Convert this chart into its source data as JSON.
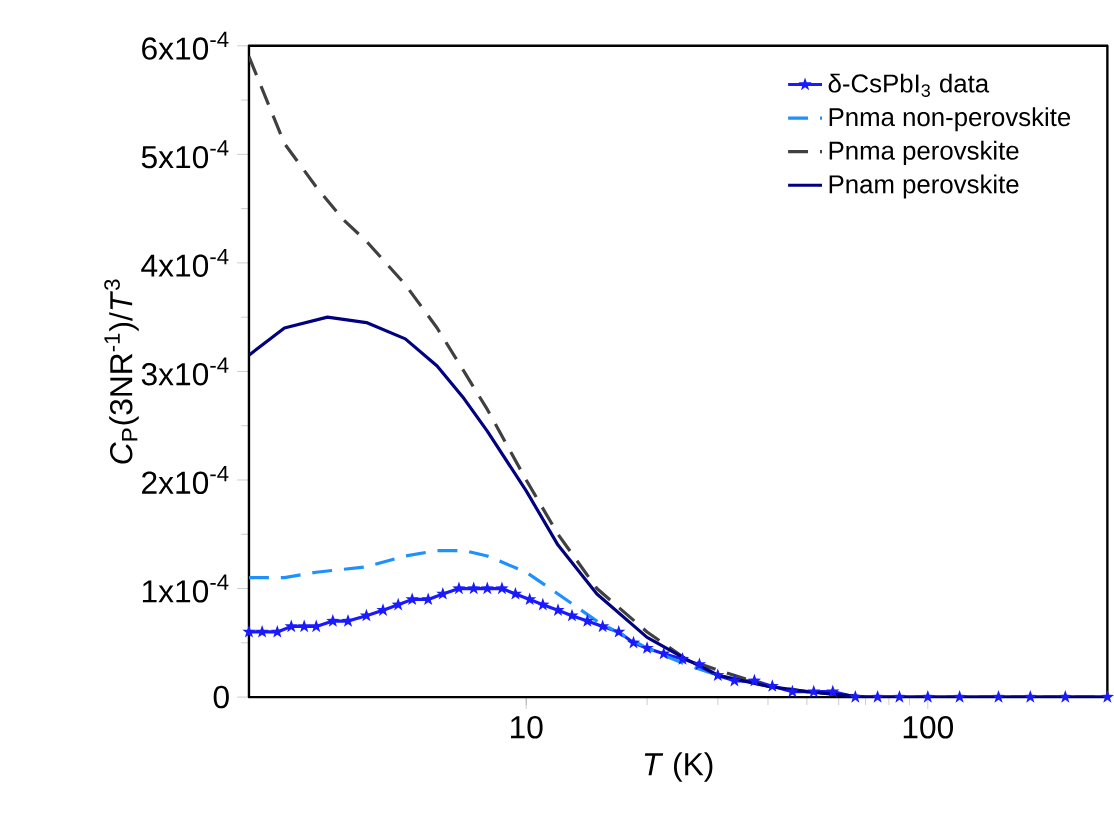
{
  "chart_data": {
    "type": "line",
    "xlabel": "*T* (K)",
    "ylabel": "*C*$_{P}$(3NR$^{-1}$)/*T*$^{3}$",
    "log": "x",
    "xlim": [
      2.04,
      280
    ],
    "xticks": [
      10,
      100
    ],
    "ylim": [
      0,
      0.0006
    ],
    "yticks": [
      0,
      {
        "value": 0.0001,
        "label": "1x10$^{-4}$"
      },
      {
        "value": 0.0002,
        "label": "2x10$^{-4}$"
      },
      {
        "value": 0.0003,
        "label": "3x10$^{-4}$"
      },
      {
        "value": 0.0004,
        "label": "4x10$^{-4}$"
      },
      {
        "value": 0.0005,
        "label": "5x10$^{-4}$"
      },
      {
        "value": 0.0006,
        "label": "6x10$^{-4}$"
      }
    ],
    "legend": "top right",
    "series": [
      {
        "name": "δ-CsPbI$_{3}$ data",
        "color": "#1a1aff",
        "marker": "star",
        "line_style": "solid",
        "x": [
          2.04,
          2.2,
          2.4,
          2.6,
          2.8,
          3.0,
          3.3,
          3.6,
          4.0,
          4.4,
          4.8,
          5.2,
          5.7,
          6.2,
          6.8,
          7.4,
          8.0,
          8.7,
          9.4,
          10.2,
          11,
          12,
          13,
          14.2,
          15.5,
          17,
          18.5,
          20,
          22,
          24.5,
          27,
          30,
          33,
          37,
          41,
          46,
          52,
          58,
          66,
          75,
          85,
          100,
          120,
          150,
          180,
          220,
          280
        ],
        "values": [
          6e-05,
          6e-05,
          6e-05,
          6.5e-05,
          6.5e-05,
          6.5e-05,
          7e-05,
          7e-05,
          7.5e-05,
          8e-05,
          8.5e-05,
          9e-05,
          9e-05,
          9.5e-05,
          0.0001,
          0.0001,
          0.0001,
          0.0001,
          9.5e-05,
          9e-05,
          8.5e-05,
          8e-05,
          7.5e-05,
          7e-05,
          6.5e-05,
          6e-05,
          5e-05,
          4.5e-05,
          4e-05,
          3.5e-05,
          3e-05,
          2e-05,
          1.5e-05,
          1.5e-05,
          1e-05,
          5e-06,
          5e-06,
          5e-06,
          0,
          0,
          0,
          0,
          0,
          0,
          0,
          0,
          0
        ]
      },
      {
        "name": "Pnma non-perovskite",
        "color": "#1e90ff",
        "line_style": "dashed",
        "x": [
          2.04,
          2.5,
          3,
          4,
          5,
          6,
          7,
          8,
          10,
          12,
          15,
          20,
          25,
          30,
          40
        ],
        "values": [
          0.00011,
          0.00011,
          0.000115,
          0.00012,
          0.00013,
          0.000135,
          0.000135,
          0.00013,
          0.000115,
          9.5e-05,
          7e-05,
          4.5e-05,
          3e-05,
          2e-05,
          1e-05
        ]
      },
      {
        "name": "Pnma perovskite",
        "color": "#404040",
        "line_style": "dashed",
        "x": [
          2.04,
          2.5,
          3,
          3.5,
          4,
          5,
          6,
          7,
          8,
          10,
          12,
          15,
          20,
          25,
          30,
          40,
          50,
          70,
          100,
          200,
          280
        ],
        "values": [
          0.00059,
          0.00051,
          0.00047,
          0.00044,
          0.00042,
          0.00038,
          0.00034,
          0.0003,
          0.000265,
          0.0002,
          0.00015,
          0.0001,
          6e-05,
          3.5e-05,
          2.5e-05,
          1e-05,
          5e-06,
          0,
          0,
          0,
          0
        ]
      },
      {
        "name": "Pnam perovskite",
        "color": "#000080",
        "line_style": "solid",
        "x": [
          2.04,
          2.5,
          3.2,
          4,
          5,
          6,
          7,
          8,
          10,
          12,
          15,
          20,
          25,
          30,
          40,
          50,
          70,
          100,
          200,
          280
        ],
        "values": [
          0.000315,
          0.00034,
          0.00035,
          0.000345,
          0.00033,
          0.000305,
          0.000275,
          0.000245,
          0.00019,
          0.00014,
          9.5e-05,
          5.5e-05,
          3.5e-05,
          2e-05,
          1e-05,
          5e-06,
          0,
          0,
          0,
          0
        ]
      }
    ]
  }
}
